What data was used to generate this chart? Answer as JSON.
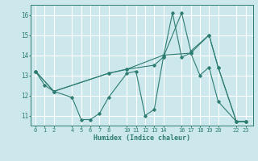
{
  "xlabel": "Humidex (Indice chaleur)",
  "ylabel": "",
  "bg_color": "#cce8ec",
  "grid_color": "#ffffff",
  "line_color": "#2e7d72",
  "xlim": [
    -0.5,
    23.8
  ],
  "ylim": [
    10.5,
    16.5
  ],
  "xticks": [
    0,
    1,
    2,
    4,
    5,
    6,
    7,
    8,
    10,
    11,
    12,
    13,
    14,
    16,
    17,
    18,
    19,
    20,
    22,
    23
  ],
  "yticks": [
    11,
    12,
    13,
    14,
    15,
    16
  ],
  "series": [
    {
      "x": [
        0,
        1,
        2,
        4,
        5,
        6,
        7,
        8,
        10,
        11,
        12,
        13,
        14,
        15,
        16,
        17,
        18,
        19,
        20,
        22,
        23
      ],
      "y": [
        13.2,
        12.5,
        12.2,
        11.9,
        10.8,
        10.8,
        11.1,
        11.9,
        13.1,
        13.2,
        11.0,
        11.3,
        13.9,
        16.1,
        13.9,
        14.1,
        13.0,
        13.4,
        11.7,
        10.7,
        10.7
      ]
    },
    {
      "x": [
        0,
        2,
        8,
        10,
        13,
        14,
        16,
        17,
        19,
        20,
        22,
        23
      ],
      "y": [
        13.2,
        12.2,
        13.1,
        13.3,
        13.5,
        13.9,
        16.1,
        14.2,
        15.0,
        13.4,
        10.7,
        10.7
      ]
    },
    {
      "x": [
        0,
        2,
        8,
        10,
        14,
        17,
        19,
        20,
        22,
        23
      ],
      "y": [
        13.2,
        12.2,
        13.1,
        13.3,
        14.0,
        14.1,
        15.0,
        13.4,
        10.7,
        10.7
      ]
    }
  ]
}
